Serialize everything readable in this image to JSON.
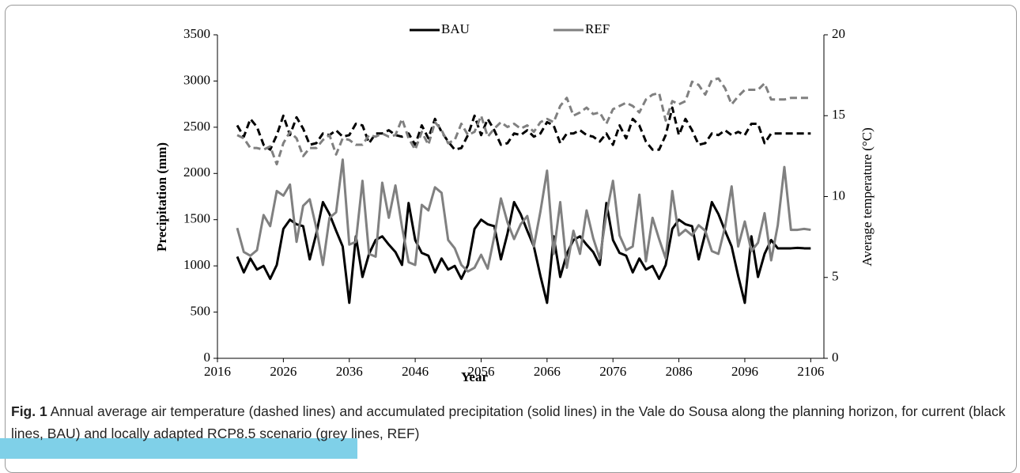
{
  "chart_data": {
    "type": "line",
    "ylabel": "Precipitation (mm)",
    "y2label": "Average temperature (°C)",
    "xlabel": "Year",
    "x": [
      2019,
      2020,
      2021,
      2022,
      2023,
      2024,
      2025,
      2026,
      2027,
      2028,
      2029,
      2030,
      2031,
      2032,
      2033,
      2034,
      2035,
      2036,
      2037,
      2038,
      2039,
      2040,
      2041,
      2042,
      2043,
      2044,
      2045,
      2046,
      2047,
      2048,
      2049,
      2050,
      2051,
      2052,
      2053,
      2054,
      2055,
      2056,
      2057,
      2058,
      2059,
      2060,
      2061,
      2062,
      2063,
      2064,
      2065,
      2066,
      2067,
      2068,
      2069,
      2070,
      2071,
      2072,
      2073,
      2074,
      2075,
      2076,
      2077,
      2078,
      2079,
      2080,
      2081,
      2082,
      2083,
      2084,
      2085,
      2086,
      2087,
      2088,
      2089,
      2090,
      2091,
      2092,
      2093,
      2094,
      2095,
      2096,
      2097,
      2098,
      2099,
      2100,
      2101,
      2102,
      2103,
      2104,
      2105,
      2106
    ],
    "series": [
      {
        "name": "BAU",
        "color": "#000000",
        "dashed": false,
        "values": [
          1100,
          930,
          1080,
          960,
          1000,
          860,
          1010,
          1400,
          1500,
          1450,
          1430,
          1070,
          1350,
          1690,
          1560,
          1380,
          1210,
          600,
          1320,
          880,
          1130,
          1280,
          1320,
          1230,
          1150,
          1010,
          1680,
          1280,
          1140,
          1110,
          930,
          1080,
          960,
          1000,
          860,
          1010,
          1400,
          1500,
          1450,
          1430,
          1070,
          1350,
          1690,
          1560,
          1380,
          1210,
          890,
          600,
          1320,
          880,
          1130,
          1280,
          1320,
          1230,
          1150,
          1010,
          1680,
          1280,
          1140,
          1110,
          930,
          1080,
          960,
          1000,
          860,
          1010,
          1400,
          1500,
          1450,
          1430,
          1070,
          1350,
          1690,
          1560,
          1380,
          1210,
          890,
          600,
          1320,
          880,
          1130,
          1280,
          1190,
          1190,
          1190,
          1195,
          1190,
          1190
        ]
      },
      {
        "name": "REF",
        "color": "#808080",
        "dashed": false,
        "values": [
          1410,
          1150,
          1110,
          1170,
          1550,
          1430,
          1810,
          1760,
          1880,
          1260,
          1650,
          1720,
          1410,
          1010,
          1520,
          1580,
          2150,
          1230,
          1260,
          1920,
          1130,
          1100,
          1900,
          1520,
          1870,
          1420,
          1040,
          1010,
          1660,
          1600,
          1850,
          1790,
          1280,
          1190,
          1010,
          940,
          980,
          1120,
          970,
          1320,
          1730,
          1470,
          1290,
          1450,
          1540,
          1210,
          1590,
          2030,
          1130,
          1690,
          980,
          1380,
          1130,
          1600,
          1300,
          1080,
          1560,
          1920,
          1330,
          1170,
          1210,
          1770,
          1050,
          1520,
          1290,
          1080,
          1810,
          1330,
          1390,
          1330,
          1440,
          1380,
          1160,
          1130,
          1420,
          1860,
          1210,
          1480,
          1160,
          1250,
          1570,
          1060,
          1440,
          2070,
          1390,
          1390,
          1400,
          1390
        ]
      },
      {
        "color": "#000000",
        "dashed": true,
        "axis": "y2",
        "values": [
          14.4,
          13.7,
          14.8,
          14.3,
          13.2,
          12.9,
          13.8,
          15.0,
          13.8,
          14.9,
          14.2,
          13.2,
          13.3,
          13.9,
          13.8,
          14.1,
          13.7,
          13.8,
          14.5,
          14.4,
          13.3,
          13.9,
          13.9,
          14.1,
          13.8,
          13.7,
          13.9,
          13.2,
          14.4,
          13.6,
          14.8,
          14.0,
          13.4,
          12.9,
          13.0,
          13.8,
          15.0,
          13.8,
          14.8,
          14.1,
          13.2,
          13.3,
          13.9,
          13.8,
          14.1,
          13.7,
          13.9,
          14.6,
          14.4,
          13.3,
          13.9,
          13.9,
          14.1,
          13.8,
          13.7,
          13.4,
          13.9,
          13.2,
          14.4,
          13.6,
          14.8,
          14.4,
          13.4,
          12.9,
          12.9,
          13.8,
          15.5,
          13.8,
          14.8,
          14.1,
          13.2,
          13.3,
          13.9,
          13.8,
          14.1,
          13.8,
          14.0,
          13.8,
          14.5,
          14.5,
          13.3,
          13.9,
          13.9,
          13.9,
          13.9,
          13.9,
          13.9,
          13.9
        ]
      },
      {
        "color": "#808080",
        "dashed": true,
        "axis": "y2",
        "values": [
          13.8,
          13.6,
          13.0,
          13.0,
          12.9,
          13.1,
          12.0,
          13.3,
          14.0,
          13.6,
          12.5,
          13.0,
          13.0,
          13.5,
          13.8,
          12.6,
          13.6,
          13.5,
          13.2,
          13.2,
          13.8,
          13.7,
          13.9,
          13.7,
          13.8,
          14.8,
          13.6,
          12.9,
          14.0,
          13.2,
          14.6,
          14.1,
          13.3,
          13.5,
          14.5,
          13.8,
          14.0,
          15.0,
          13.7,
          14.2,
          14.6,
          14.3,
          14.5,
          14.2,
          14.4,
          14.0,
          14.6,
          14.8,
          14.6,
          15.6,
          16.1,
          15.0,
          15.2,
          15.5,
          15.1,
          15.2,
          14.5,
          15.4,
          15.6,
          15.8,
          15.6,
          15.2,
          16.0,
          16.3,
          16.4,
          14.7,
          15.9,
          15.7,
          15.9,
          17.1,
          16.9,
          16.3,
          17.2,
          17.3,
          16.7,
          15.7,
          16.2,
          16.6,
          16.6,
          16.6,
          17.0,
          16.0,
          16.0,
          16.0,
          16.1,
          16.1,
          16.1,
          16.1
        ]
      }
    ],
    "xlim": [
      2016,
      2108
    ],
    "xticks": [
      2016,
      2026,
      2036,
      2046,
      2056,
      2066,
      2076,
      2086,
      2096,
      2106
    ],
    "ylim": [
      0,
      3500
    ],
    "yticks": [
      0,
      500,
      1000,
      1500,
      2000,
      2500,
      3000,
      3500
    ],
    "y2lim": [
      0,
      20
    ],
    "y2ticks": [
      0,
      5,
      10,
      15,
      20
    ],
    "legend": "top"
  },
  "caption": {
    "label": "Fig. 1",
    "text": "Annual average air temperature (dashed lines) and accumulated precipitation (solid lines) in the Vale do Sousa along the planning horizon, for current (black lines, BAU) and locally adapted RCP8.5 scenario (grey lines, REF)"
  }
}
